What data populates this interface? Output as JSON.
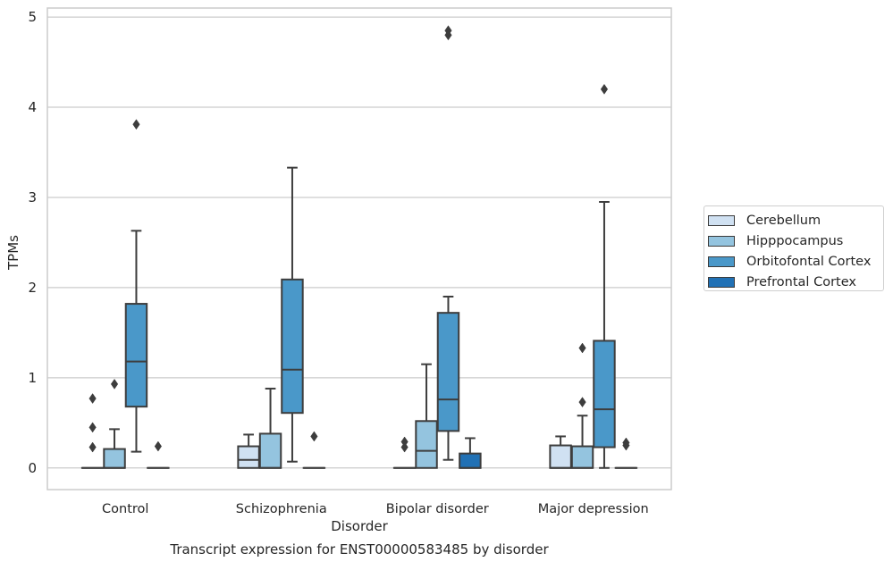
{
  "chart_data": {
    "type": "boxplot",
    "title": "",
    "xlabel": "Disorder",
    "ylabel": "TPMs",
    "caption": "Transcript expression for ENST00000583485 by disorder",
    "categories": [
      "Control",
      "Schizophrenia",
      "Bipolar disorder",
      "Major depression"
    ],
    "ylim": [
      -0.24,
      5.1
    ],
    "yticks": [
      0,
      1,
      2,
      3,
      4,
      5
    ],
    "grid": "horizontal",
    "legend_position": "right",
    "series": [
      {
        "name": "Cerebellum",
        "color": "#d0e1f2",
        "boxes": [
          {
            "whislo": 0,
            "q1": 0,
            "med": 0,
            "q3": 0,
            "whishi": 0,
            "fliers": [
              0.23,
              0.45,
              0.77
            ]
          },
          {
            "whislo": 0,
            "q1": 0,
            "med": 0.09,
            "q3": 0.24,
            "whishi": 0.37,
            "fliers": []
          },
          {
            "whislo": 0,
            "q1": 0,
            "med": 0,
            "q3": 0,
            "whishi": 0,
            "fliers": [
              0.23,
              0.29
            ]
          },
          {
            "whislo": 0,
            "q1": 0,
            "med": 0,
            "q3": 0.25,
            "whishi": 0.35,
            "fliers": []
          }
        ]
      },
      {
        "name": "Hipppocampus",
        "color": "#94c4df",
        "boxes": [
          {
            "whislo": 0,
            "q1": 0,
            "med": 0,
            "q3": 0.21,
            "whishi": 0.43,
            "fliers": [
              0.93
            ]
          },
          {
            "whislo": 0,
            "q1": 0,
            "med": 0,
            "q3": 0.38,
            "whishi": 0.88,
            "fliers": []
          },
          {
            "whislo": 0,
            "q1": 0,
            "med": 0.19,
            "q3": 0.52,
            "whishi": 1.15,
            "fliers": []
          },
          {
            "whislo": 0,
            "q1": 0,
            "med": 0,
            "q3": 0.24,
            "whishi": 0.58,
            "fliers": [
              0.73,
              1.33
            ]
          }
        ]
      },
      {
        "name": "Orbitofontal Cortex",
        "color": "#4a98c9",
        "boxes": [
          {
            "whislo": 0.18,
            "q1": 0.68,
            "med": 1.18,
            "q3": 1.82,
            "whishi": 2.63,
            "fliers": [
              3.81
            ]
          },
          {
            "whislo": 0.07,
            "q1": 0.61,
            "med": 1.09,
            "q3": 2.09,
            "whishi": 3.33,
            "fliers": []
          },
          {
            "whislo": 0.09,
            "q1": 0.41,
            "med": 0.76,
            "q3": 1.72,
            "whishi": 1.9,
            "fliers": [
              4.8,
              4.85
            ]
          },
          {
            "whislo": 0,
            "q1": 0.23,
            "med": 0.65,
            "q3": 1.41,
            "whishi": 2.95,
            "fliers": [
              4.2
            ]
          }
        ]
      },
      {
        "name": "Prefrontal Cortex",
        "color": "#2171b5",
        "boxes": [
          {
            "whislo": 0,
            "q1": 0,
            "med": 0,
            "q3": 0,
            "whishi": 0,
            "fliers": [
              0.24
            ]
          },
          {
            "whislo": 0,
            "q1": 0,
            "med": 0,
            "q3": 0,
            "whishi": 0,
            "fliers": [
              0.35
            ]
          },
          {
            "whislo": 0,
            "q1": 0,
            "med": 0,
            "q3": 0.16,
            "whishi": 0.33,
            "fliers": []
          },
          {
            "whislo": 0,
            "q1": 0,
            "med": 0,
            "q3": 0,
            "whishi": 0,
            "fliers": [
              0.25,
              0.28
            ]
          }
        ]
      }
    ]
  }
}
